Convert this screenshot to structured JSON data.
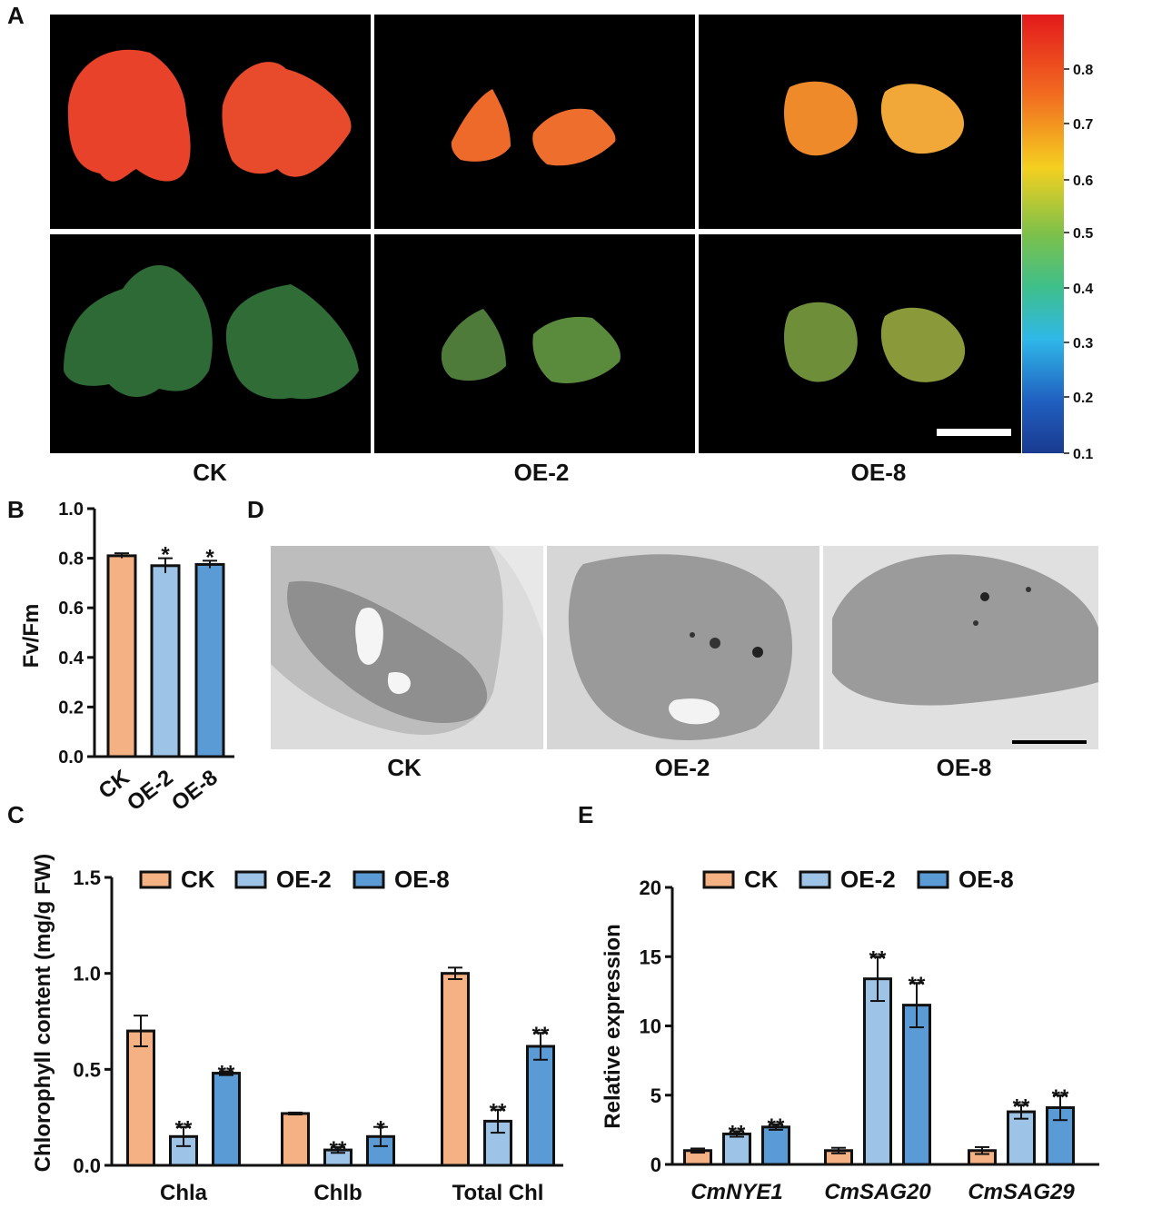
{
  "panel_a": {
    "letter": "A",
    "labels": [
      "CK",
      "OE-2",
      "OE-8"
    ],
    "colorbar_ticks": [
      "0.8",
      "0.7",
      "0.6",
      "0.5",
      "0.4",
      "0.3",
      "0.2",
      "0.1"
    ]
  },
  "panel_d": {
    "letter": "D",
    "labels": [
      "CK",
      "OE-2",
      "OE-8"
    ]
  },
  "chart_data": [
    {
      "panel": "B",
      "type": "bar",
      "categories": [
        "CK",
        "OE-2",
        "OE-8"
      ],
      "values": [
        0.81,
        0.77,
        0.775
      ],
      "errors": [
        0.01,
        0.03,
        0.015
      ],
      "significance": [
        "",
        "*",
        "*"
      ],
      "colors": [
        "#F4B183",
        "#9DC3E6",
        "#5B9BD5"
      ],
      "ylabel": "Fv/Fm",
      "ylim": [
        0,
        1.0
      ],
      "yticks": [
        "0.0",
        "0.2",
        "0.4",
        "0.6",
        "0.8",
        "1.0"
      ]
    },
    {
      "panel": "C",
      "type": "bar",
      "categories": [
        "Chla",
        "Chlb",
        "Total Chl"
      ],
      "series": [
        {
          "name": "CK",
          "color": "#F4B183",
          "values": [
            0.7,
            0.27,
            1.0
          ],
          "errors": [
            0.08,
            0.005,
            0.03
          ],
          "significance": [
            "",
            "",
            ""
          ]
        },
        {
          "name": "OE-2",
          "color": "#9DC3E6",
          "values": [
            0.15,
            0.08,
            0.23
          ],
          "errors": [
            0.05,
            0.015,
            0.06
          ],
          "significance": [
            "**",
            "**",
            "**"
          ]
        },
        {
          "name": "OE-8",
          "color": "#5B9BD5",
          "values": [
            0.48,
            0.15,
            0.62
          ],
          "errors": [
            0.01,
            0.05,
            0.07
          ],
          "significance": [
            "**",
            "*",
            "**"
          ]
        }
      ],
      "ylabel": "Chlorophyll content (mg/g FW)",
      "ylim": [
        0,
        1.5
      ],
      "yticks": [
        "0.0",
        "0.5",
        "1.0",
        "1.5"
      ]
    },
    {
      "panel": "E",
      "type": "bar",
      "categories": [
        "CmNYE1",
        "CmSAG20",
        "CmSAG29"
      ],
      "series": [
        {
          "name": "CK",
          "color": "#F4B183",
          "values": [
            1.0,
            1.0,
            1.0
          ],
          "errors": [
            0.15,
            0.2,
            0.25
          ],
          "significance": [
            "",
            "",
            ""
          ]
        },
        {
          "name": "OE-2",
          "color": "#9DC3E6",
          "values": [
            2.2,
            13.4,
            3.8
          ],
          "errors": [
            0.2,
            1.6,
            0.5
          ],
          "significance": [
            "**",
            "**",
            "**"
          ]
        },
        {
          "name": "OE-8",
          "color": "#5B9BD5",
          "values": [
            2.7,
            11.5,
            4.1
          ],
          "errors": [
            0.2,
            1.6,
            0.9
          ],
          "significance": [
            "**",
            "**",
            "**"
          ]
        }
      ],
      "ylabel": "Relative expression",
      "ylim": [
        0,
        20
      ],
      "yticks": [
        "0",
        "5",
        "10",
        "15",
        "20"
      ]
    }
  ]
}
